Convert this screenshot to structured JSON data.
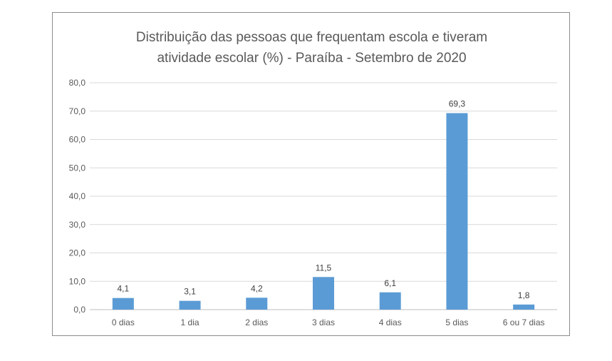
{
  "chart_data": {
    "type": "bar",
    "title_lines": [
      "Distribuição das pessoas que frequentam escola e tiveram",
      "atividade escolar (%) - Paraíba - Setembro de 2020"
    ],
    "categories": [
      "0 dias",
      "1 dia",
      "2 dias",
      "3 dias",
      "4 dias",
      "5 dias",
      "6 ou 7 dias"
    ],
    "values": [
      4.1,
      3.1,
      4.2,
      11.5,
      6.1,
      69.3,
      1.8
    ],
    "data_labels": [
      "4,1",
      "3,1",
      "4,2",
      "11,5",
      "6,1",
      "69,3",
      "1,8"
    ],
    "ylim": [
      0,
      80
    ],
    "yticks": [
      0,
      10,
      20,
      30,
      40,
      50,
      60,
      70,
      80
    ],
    "ytick_labels": [
      "0,0",
      "10,0",
      "20,0",
      "30,0",
      "40,0",
      "50,0",
      "60,0",
      "70,0",
      "80,0"
    ],
    "xlabel": "",
    "ylabel": "",
    "grid": true,
    "legend": "none",
    "colors": {
      "bar": "#5b9bd5",
      "grid": "#d9d9d9",
      "axis": "#bfbfbf",
      "text": "#595959"
    }
  }
}
